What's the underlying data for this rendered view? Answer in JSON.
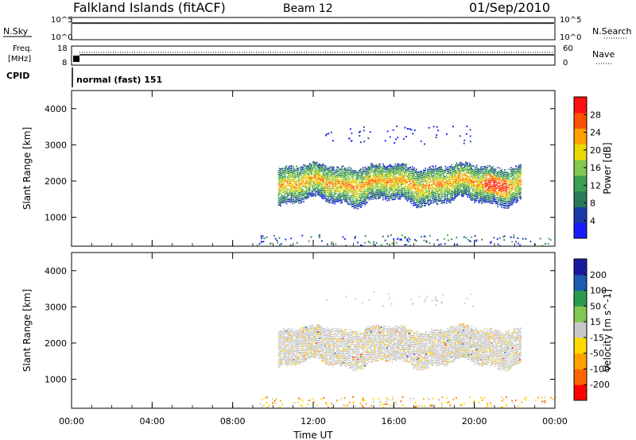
{
  "header": {
    "station": "Falkland Islands (fitACF)",
    "beam": "Beam 12",
    "date": "01/Sep/2010"
  },
  "status_panels": {
    "nsky_label": "N.Sky",
    "nsearch_label": "N.Search",
    "freq_label_1": "Freq.",
    "freq_label_2": "[MHz]",
    "nave_label": "Nave",
    "cpid_label": "CPID",
    "noise_ticks": [
      "10^5",
      "10^0"
    ],
    "noise_ticks_right": [
      "10^5",
      "10^0"
    ],
    "freq_ticks": [
      "18",
      "8"
    ],
    "nave_ticks": [
      "60",
      "0"
    ],
    "cpid_value": "normal (fast) 151"
  },
  "colors": {
    "power_scale": [
      "#1a1aff",
      "#1a3ca8",
      "#2a7a5a",
      "#3aa050",
      "#82c850",
      "#e8d800",
      "#ffa000",
      "#ff5000",
      "#ff1010"
    ],
    "velocity_scale": [
      "#ff0000",
      "#ff6600",
      "#ffa000",
      "#ffd800",
      "#c8c8c8",
      "#80c850",
      "#2a9a50",
      "#1a5cb0",
      "#1a1aa0"
    ]
  },
  "chart_data": [
    {
      "type": "heatmap",
      "quantity": "power",
      "xlabel": "",
      "ylabel": "Slant Range [km]",
      "y_ticks": [
        "1000",
        "2000",
        "3000",
        "4000"
      ],
      "ylim": [
        200,
        4500
      ],
      "xlim": [
        "00:00",
        "24:00"
      ],
      "colorbar_label": "Power [dB]",
      "colorbar_ticks": [
        "4",
        "8",
        "12",
        "16",
        "20",
        "24",
        "28"
      ],
      "colorbar_range": [
        0,
        32
      ],
      "echo_regions": [
        {
          "start": "10:15",
          "end": "22:20",
          "range_km": [
            1300,
            2400
          ],
          "peak_dB": 28
        },
        {
          "start": "12:30",
          "end": "20:00",
          "range_km": [
            3000,
            3500
          ],
          "peak_dB": 8
        },
        {
          "start": "09:10",
          "end": "24:00",
          "range_km": [
            200,
            500
          ],
          "peak_dB": 8
        }
      ]
    },
    {
      "type": "heatmap",
      "quantity": "velocity",
      "xlabel": "Time UT",
      "ylabel": "Slant Range [km]",
      "y_ticks": [
        "1000",
        "2000",
        "3000",
        "4000"
      ],
      "ylim": [
        200,
        4500
      ],
      "x_ticks": [
        "00:00",
        "04:00",
        "08:00",
        "12:00",
        "16:00",
        "20:00",
        "00:00"
      ],
      "colorbar_label": "Velocity [m s^-1]",
      "colorbar_ticks": [
        "-200",
        "-100",
        "-50",
        "-15",
        "15",
        "50",
        "100",
        "200"
      ],
      "echo_regions": [
        {
          "start": "10:15",
          "end": "22:20",
          "range_km": [
            1300,
            2400
          ],
          "velocity_ms": 0
        },
        {
          "start": "09:10",
          "end": "24:00",
          "range_km": [
            200,
            500
          ],
          "velocity_ms": -60
        }
      ]
    }
  ]
}
